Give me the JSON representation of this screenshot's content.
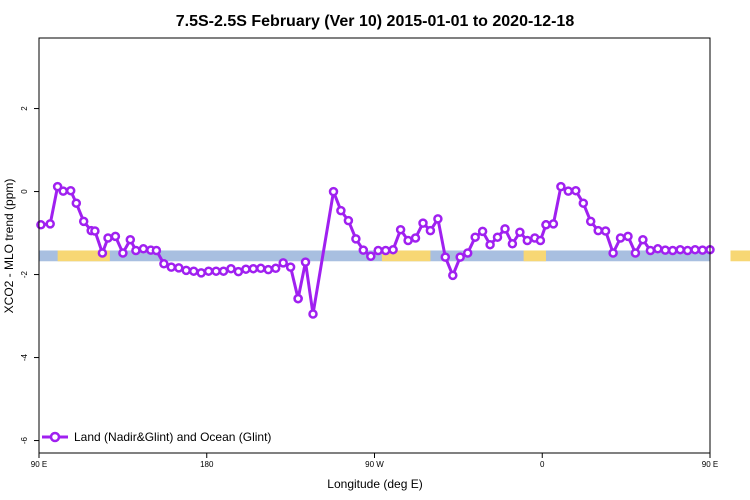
{
  "chart_data": {
    "type": "line",
    "title": "7.5S-2.5S February (Ver 10)   2015-01-01 to 2020-12-18",
    "xlabel": "Longitude (deg E)",
    "ylabel": "XCO2 - MLO trend (ppm)",
    "xlim": [
      90,
      450
    ],
    "ylim": [
      -6.3,
      3.7
    ],
    "x_ticks": [
      {
        "value": 90,
        "label": "90 E"
      },
      {
        "value": 180,
        "label": "180"
      },
      {
        "value": 270,
        "label": "90 W"
      },
      {
        "value": 360,
        "label": "0"
      },
      {
        "value": 450,
        "label": "90 E"
      },
      {
        "value": 540,
        "label": "180"
      }
    ],
    "y_ticks": [
      {
        "value": -6,
        "label": "-6"
      },
      {
        "value": -4,
        "label": "-4"
      },
      {
        "value": -2,
        "label": "-2"
      },
      {
        "value": 0,
        "label": "0"
      },
      {
        "value": 2,
        "label": "2"
      }
    ],
    "grid": false,
    "legend": {
      "position": "bottom-left"
    },
    "surface_band": {
      "y_range": [
        -1.68,
        -1.42
      ],
      "ocean_color": "#a8bfe0",
      "land_color": "#f7d774",
      "land_segments": [
        [
          100,
          128
        ],
        [
          274,
          300
        ],
        [
          350,
          362
        ],
        [
          461,
          491
        ]
      ]
    },
    "series": [
      {
        "name": "Land (Nadir&Glint) and Ocean (Glint)",
        "color": "#a020f0",
        "segments": [
          {
            "x": [
              91,
              96,
              100,
              103,
              107,
              110,
              114,
              118,
              120,
              124,
              127,
              131,
              135,
              139,
              142,
              146,
              150,
              153,
              157,
              161,
              165,
              169,
              173,
              177,
              181,
              185,
              189,
              193,
              197,
              201,
              205,
              209,
              213,
              217,
              221,
              225,
              229
            ],
            "y": [
              -0.8,
              -0.78,
              0.12,
              0.01,
              0.02,
              -0.28,
              -0.72,
              -0.94,
              -0.95,
              -1.48,
              -1.12,
              -1.08,
              -1.48,
              -1.16,
              -1.42,
              -1.38,
              -1.41,
              -1.42,
              -1.74,
              -1.82,
              -1.84,
              -1.9,
              -1.92,
              -1.96,
              -1.92,
              -1.92,
              -1.92,
              -1.86,
              -1.93,
              -1.87,
              -1.86,
              -1.85,
              -1.88,
              -1.85,
              -1.72,
              -1.82,
              -2.58
            ]
          },
          {
            "x": [
              229,
              233,
              237,
              248,
              252,
              256,
              260,
              264,
              268,
              272,
              276,
              280,
              284,
              288,
              292,
              296,
              300,
              304,
              308,
              312,
              316,
              320,
              324,
              328,
              332,
              336,
              340,
              344,
              348,
              352,
              356,
              359,
              362
            ],
            "y": [
              -2.58,
              -1.7,
              -2.95,
              0.0,
              -0.46,
              -0.7,
              -1.14,
              -1.41,
              -1.56,
              -1.42,
              -1.42,
              -1.4,
              -0.92,
              -1.18,
              -1.12,
              -0.76,
              -0.94,
              -0.66,
              -1.58,
              -2.02,
              -1.58,
              -1.48,
              -1.1,
              -0.96,
              -1.28,
              -1.1,
              -0.9,
              -1.26,
              -0.98,
              -1.18,
              -1.12,
              -1.18,
              -0.8
            ]
          },
          {
            "x": [
              362,
              366,
              370,
              374,
              378,
              382,
              386,
              390,
              394,
              398,
              402,
              406,
              410,
              414,
              418,
              422,
              426,
              430,
              434,
              438,
              442,
              446,
              450
            ],
            "y": [
              -0.8,
              -0.78,
              0.12,
              0.01,
              0.02,
              -0.28,
              -0.72,
              -0.94,
              -0.95,
              -1.48,
              -1.12,
              -1.08,
              -1.48,
              -1.16,
              -1.42,
              -1.38,
              -1.41,
              -1.42,
              -1.4,
              -1.42,
              -1.4,
              -1.41,
              -1.4
            ]
          }
        ]
      }
    ]
  }
}
